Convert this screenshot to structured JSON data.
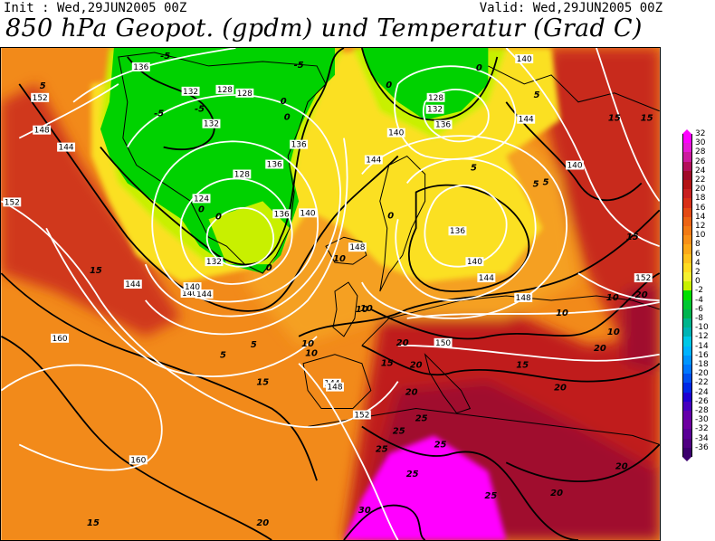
{
  "header": {
    "init_text": "Init : Wed,29JUN2005 00Z",
    "valid_text": "Valid: Wed,29JUN2005 00Z",
    "title": "850 hPa Geopot. (gpdm) und Temperatur (Grad C)"
  },
  "legend": {
    "labels": [
      "32",
      "30",
      "28",
      "26",
      "24",
      "22",
      "20",
      "18",
      "16",
      "14",
      "12",
      "10",
      "8",
      "6",
      "4",
      "2",
      "0",
      "-2",
      "-4",
      "-6",
      "-8",
      "-10",
      "-12",
      "-14",
      "-16",
      "-18",
      "-20",
      "-22",
      "-24",
      "-26",
      "-28",
      "-30",
      "-32",
      "-34",
      "-36"
    ],
    "colors": [
      "#ff00ff",
      "#e619d6",
      "#cc1a9e",
      "#b30f5a",
      "#a00a28",
      "#b41414",
      "#c82020",
      "#d83018",
      "#e44a14",
      "#ec6414",
      "#f27a14",
      "#f89018",
      "#fca818",
      "#ffc21c",
      "#ffdc20",
      "#f4f030",
      "#c8f000",
      "#00e000",
      "#00c832",
      "#00b450",
      "#00b48c",
      "#00b4b4",
      "#00c8e6",
      "#00b4ff",
      "#0096ff",
      "#0078ff",
      "#0050f0",
      "#0028e6",
      "#1e00d2",
      "#4600be",
      "#6400aa",
      "#6e00a0",
      "#5a0096",
      "#500082",
      "#3c006e"
    ]
  },
  "map": {
    "colors": {
      "warm": "#f28a1a",
      "orange": "#f5a020",
      "yellow": "#fbe021",
      "lime": "#c8f000",
      "green": "#00d200",
      "red": "#c01e1e",
      "deep_red": "#a0102e",
      "magenta": "#ff00ff",
      "contour_geo": "#ffffff",
      "contour_temp": "#000000"
    },
    "geopotential_labels": [
      "136",
      "132",
      "128",
      "128",
      "128",
      "124",
      "152",
      "148",
      "144",
      "140",
      "136",
      "132",
      "140",
      "144",
      "136",
      "128",
      "132",
      "136",
      "140",
      "140",
      "144",
      "140",
      "136",
      "140",
      "144",
      "148",
      "148",
      "144",
      "152",
      "150",
      "152",
      "160",
      "160",
      "144",
      "140",
      "136",
      "132",
      "144",
      "148",
      "152"
    ],
    "temperature_labels": [
      "-5",
      "-5",
      "-5",
      "-5",
      "0",
      "0",
      "0",
      "0",
      "0",
      "0",
      "0",
      "0",
      "5",
      "5",
      "5",
      "5",
      "5",
      "5",
      "5",
      "10",
      "10",
      "10",
      "10",
      "10",
      "10",
      "10",
      "10",
      "15",
      "15",
      "15",
      "15",
      "15",
      "15",
      "15",
      "15",
      "20",
      "20",
      "20",
      "20",
      "20",
      "20",
      "20",
      "20",
      "20",
      "25",
      "25",
      "25",
      "25",
      "25",
      "25",
      "30"
    ]
  }
}
